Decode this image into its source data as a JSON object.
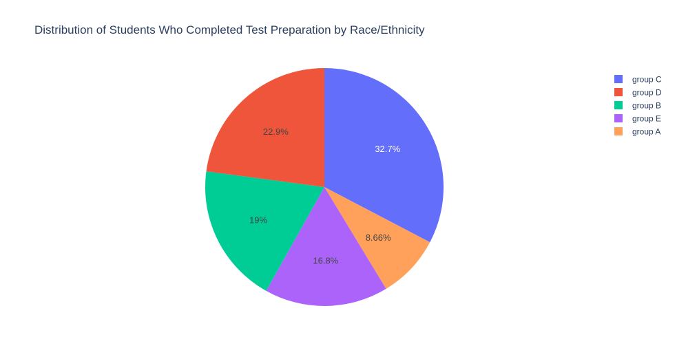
{
  "chart_data": {
    "type": "pie",
    "title": "Distribution of Students Who Completed Test Preparation by Race/Ethnicity",
    "direction": "clockwise",
    "start_angle": "top",
    "legend_position": "top-right",
    "slices": [
      {
        "label": "group C",
        "value": 32.7,
        "text": "32.7%",
        "color": "#636efa",
        "text_color": "#ffffff"
      },
      {
        "label": "group D",
        "value": 22.9,
        "text": "22.9%",
        "color": "#ef553b",
        "text_color": "#444444"
      },
      {
        "label": "group B",
        "value": 19.0,
        "text": "19%",
        "color": "#00cc96",
        "text_color": "#444444"
      },
      {
        "label": "group E",
        "value": 16.8,
        "text": "16.8%",
        "color": "#ab63fa",
        "text_color": "#444444"
      },
      {
        "label": "group A",
        "value": 8.66,
        "text": "8.66%",
        "color": "#ffa15a",
        "text_color": "#444444"
      }
    ],
    "slice_order_on_plot": [
      "group C",
      "group A",
      "group E",
      "group B",
      "group D"
    ]
  }
}
